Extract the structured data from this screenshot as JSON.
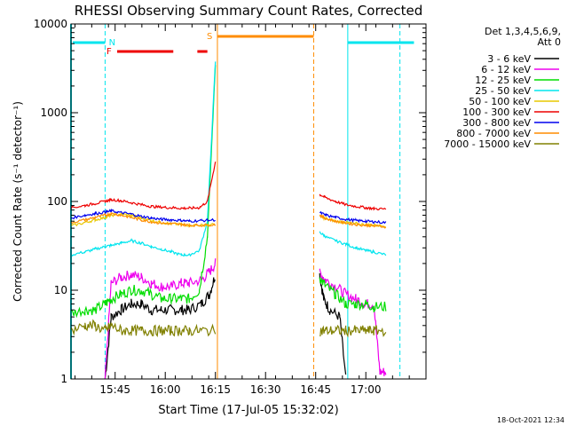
{
  "colors": {
    "background": "#ffffff",
    "axis": "#000000",
    "cyan": "#00e5ee",
    "red": "#ee0000",
    "orange": "#ff8c00"
  },
  "legend": {
    "header": [
      "Det 1,3,4,5,6,9,",
      "Att 0"
    ],
    "entries": [
      {
        "label": "3 - 6 keV",
        "color": "#000000"
      },
      {
        "label": "6 - 12 keV",
        "color": "#ee00ee"
      },
      {
        "label": "12 - 25 keV",
        "color": "#00dd00"
      },
      {
        "label": "25 - 50 keV",
        "color": "#00e5ee"
      },
      {
        "label": "50 - 100 keV",
        "color": "#e8c800"
      },
      {
        "label": "100 - 300 keV",
        "color": "#ee0000"
      },
      {
        "label": "300 - 800 keV",
        "color": "#0000ee"
      },
      {
        "label": "800 - 7000 keV",
        "color": "#ff8c00"
      },
      {
        "label": "7000 - 15000 keV",
        "color": "#808000"
      }
    ]
  },
  "annotations": {
    "night": "N",
    "flare": "F",
    "saa": "S"
  },
  "timestamp": "18-Oct-2021 12:34",
  "chart_data": {
    "type": "line",
    "title": "RHESSI Observing Summary Count Rates, Corrected",
    "xlabel": "Start Time (17-Jul-05 15:32:02)",
    "ylabel": "Corrected Count Rate (s⁻¹ detector⁻¹)",
    "yscale": "log",
    "ylim": [
      1,
      10000
    ],
    "xlim_minutes": [
      15.53,
      17.3
    ],
    "x_ticks": [
      "15:45",
      "16:00",
      "16:15",
      "16:30",
      "16:45",
      "17:00"
    ],
    "y_ticks": [
      "1",
      "10",
      "100",
      "1000",
      "10000"
    ],
    "x_unit": "time of day (hours)",
    "series": [
      {
        "name": "3 - 6 keV",
        "color": "#000000",
        "points": [
          [
            15.7,
            1
          ],
          [
            15.73,
            5
          ],
          [
            15.78,
            6
          ],
          [
            15.83,
            7
          ],
          [
            15.88,
            7
          ],
          [
            15.93,
            6
          ],
          [
            15.98,
            6
          ],
          [
            16.03,
            6
          ],
          [
            16.08,
            6
          ],
          [
            16.12,
            6
          ],
          [
            16.18,
            7
          ],
          [
            16.22,
            9
          ],
          [
            16.25,
            15
          ],
          [
            16.77,
            15
          ],
          [
            16.79,
            8
          ],
          [
            16.82,
            6
          ],
          [
            16.87,
            5
          ],
          [
            16.9,
            1
          ]
        ]
      },
      {
        "name": "6 - 12 keV",
        "color": "#ee00ee",
        "points": [
          [
            15.7,
            1
          ],
          [
            15.73,
            12
          ],
          [
            15.78,
            14
          ],
          [
            15.83,
            15
          ],
          [
            15.88,
            14
          ],
          [
            15.93,
            12
          ],
          [
            15.98,
            11
          ],
          [
            16.03,
            11
          ],
          [
            16.08,
            12
          ],
          [
            16.12,
            12
          ],
          [
            16.18,
            13
          ],
          [
            16.22,
            16
          ],
          [
            16.25,
            20
          ],
          [
            16.77,
            16
          ],
          [
            16.8,
            13
          ],
          [
            16.85,
            11
          ],
          [
            16.9,
            9
          ],
          [
            16.95,
            8
          ],
          [
            17.0,
            7
          ],
          [
            17.04,
            7
          ],
          [
            17.07,
            1.2
          ],
          [
            17.1,
            1.2
          ]
        ]
      },
      {
        "name": "12 - 25 keV",
        "color": "#00dd00",
        "points": [
          [
            15.53,
            5.5
          ],
          [
            15.6,
            6
          ],
          [
            15.65,
            6
          ],
          [
            15.7,
            7
          ],
          [
            15.73,
            8
          ],
          [
            15.78,
            9
          ],
          [
            15.83,
            10
          ],
          [
            15.88,
            10
          ],
          [
            15.93,
            9
          ],
          [
            15.98,
            8
          ],
          [
            16.03,
            8
          ],
          [
            16.08,
            8
          ],
          [
            16.12,
            8
          ],
          [
            16.17,
            10
          ],
          [
            16.21,
            40
          ],
          [
            16.25,
            3500
          ],
          [
            16.77,
            14
          ],
          [
            16.8,
            11
          ],
          [
            16.85,
            9
          ],
          [
            16.9,
            7
          ],
          [
            16.95,
            7
          ],
          [
            17.0,
            7
          ],
          [
            17.04,
            6.5
          ],
          [
            17.1,
            6.5
          ]
        ]
      },
      {
        "name": "25 - 50 keV",
        "color": "#00e5ee",
        "points": [
          [
            15.53,
            25
          ],
          [
            15.6,
            27
          ],
          [
            15.65,
            29
          ],
          [
            15.7,
            31
          ],
          [
            15.73,
            32
          ],
          [
            15.78,
            34
          ],
          [
            15.83,
            36
          ],
          [
            15.88,
            34
          ],
          [
            15.93,
            31
          ],
          [
            15.98,
            29
          ],
          [
            16.03,
            27
          ],
          [
            16.08,
            25
          ],
          [
            16.12,
            25
          ],
          [
            16.17,
            28
          ],
          [
            16.21,
            60
          ],
          [
            16.25,
            3800
          ],
          [
            16.77,
            45
          ],
          [
            16.8,
            40
          ],
          [
            16.85,
            36
          ],
          [
            16.9,
            33
          ],
          [
            16.95,
            30
          ],
          [
            17.0,
            28
          ],
          [
            17.04,
            27
          ],
          [
            17.1,
            25
          ]
        ]
      },
      {
        "name": "50 - 100 keV",
        "color": "#e8c800",
        "points": [
          [
            15.53,
            53
          ],
          [
            15.6,
            58
          ],
          [
            15.65,
            62
          ],
          [
            15.7,
            66
          ],
          [
            15.73,
            70
          ],
          [
            15.78,
            72
          ],
          [
            15.83,
            70
          ],
          [
            15.88,
            65
          ],
          [
            15.93,
            61
          ],
          [
            15.98,
            58
          ],
          [
            16.03,
            56
          ],
          [
            16.08,
            55
          ],
          [
            16.12,
            54
          ],
          [
            16.18,
            54
          ],
          [
            16.25,
            55
          ],
          [
            16.77,
            68
          ],
          [
            16.8,
            64
          ],
          [
            16.85,
            60
          ],
          [
            16.9,
            58
          ],
          [
            16.95,
            56
          ],
          [
            17.0,
            55
          ],
          [
            17.04,
            54
          ],
          [
            17.1,
            53
          ]
        ]
      },
      {
        "name": "100 - 300 keV",
        "color": "#ee0000",
        "points": [
          [
            15.53,
            85
          ],
          [
            15.6,
            90
          ],
          [
            15.65,
            95
          ],
          [
            15.7,
            100
          ],
          [
            15.73,
            105
          ],
          [
            15.78,
            102
          ],
          [
            15.83,
            97
          ],
          [
            15.88,
            92
          ],
          [
            15.93,
            88
          ],
          [
            15.98,
            86
          ],
          [
            16.03,
            85
          ],
          [
            16.08,
            84
          ],
          [
            16.12,
            84
          ],
          [
            16.17,
            85
          ],
          [
            16.21,
            100
          ],
          [
            16.25,
            280
          ],
          [
            16.77,
            120
          ],
          [
            16.8,
            110
          ],
          [
            16.85,
            100
          ],
          [
            16.9,
            92
          ],
          [
            16.95,
            88
          ],
          [
            17.0,
            85
          ],
          [
            17.04,
            83
          ],
          [
            17.1,
            82
          ]
        ]
      },
      {
        "name": "300 - 800 keV",
        "color": "#0000ee",
        "points": [
          [
            15.53,
            65
          ],
          [
            15.6,
            70
          ],
          [
            15.65,
            73
          ],
          [
            15.7,
            76
          ],
          [
            15.73,
            78
          ],
          [
            15.78,
            75
          ],
          [
            15.83,
            72
          ],
          [
            15.88,
            68
          ],
          [
            15.93,
            65
          ],
          [
            15.98,
            63
          ],
          [
            16.03,
            62
          ],
          [
            16.08,
            61
          ],
          [
            16.12,
            60
          ],
          [
            16.18,
            61
          ],
          [
            16.25,
            62
          ],
          [
            16.77,
            75
          ],
          [
            16.8,
            70
          ],
          [
            16.85,
            66
          ],
          [
            16.9,
            63
          ],
          [
            16.95,
            61
          ],
          [
            17.0,
            60
          ],
          [
            17.04,
            59
          ],
          [
            17.1,
            58
          ]
        ]
      },
      {
        "name": "800 - 7000 keV",
        "color": "#ff8c00",
        "points": [
          [
            15.53,
            58
          ],
          [
            15.6,
            62
          ],
          [
            15.65,
            66
          ],
          [
            15.7,
            70
          ],
          [
            15.73,
            73
          ],
          [
            15.78,
            70
          ],
          [
            15.83,
            66
          ],
          [
            15.88,
            62
          ],
          [
            15.93,
            59
          ],
          [
            15.98,
            57
          ],
          [
            16.03,
            56
          ],
          [
            16.08,
            55
          ],
          [
            16.12,
            54
          ],
          [
            16.18,
            54
          ],
          [
            16.25,
            55
          ],
          [
            16.77,
            70
          ],
          [
            16.8,
            64
          ],
          [
            16.85,
            60
          ],
          [
            16.9,
            57
          ],
          [
            16.95,
            55
          ],
          [
            17.0,
            54
          ],
          [
            17.04,
            53
          ],
          [
            17.1,
            52
          ]
        ]
      },
      {
        "name": "7000 - 15000 keV",
        "color": "#808000",
        "points": [
          [
            15.53,
            3.5
          ],
          [
            15.6,
            4
          ],
          [
            15.65,
            4
          ],
          [
            15.7,
            3.5
          ],
          [
            15.73,
            4
          ],
          [
            15.78,
            3.5
          ],
          [
            15.83,
            3.5
          ],
          [
            15.88,
            3.5
          ],
          [
            15.93,
            3.5
          ],
          [
            15.98,
            3.5
          ],
          [
            16.03,
            3.5
          ],
          [
            16.08,
            3.5
          ],
          [
            16.12,
            3.5
          ],
          [
            16.18,
            3.5
          ],
          [
            16.25,
            3.5
          ],
          [
            16.77,
            3.5
          ],
          [
            16.8,
            3.5
          ],
          [
            16.85,
            3.5
          ],
          [
            16.9,
            3.5
          ],
          [
            16.95,
            3.5
          ],
          [
            17.0,
            3.5
          ],
          [
            17.04,
            3.5
          ],
          [
            17.1,
            3.5
          ]
        ]
      }
    ]
  }
}
